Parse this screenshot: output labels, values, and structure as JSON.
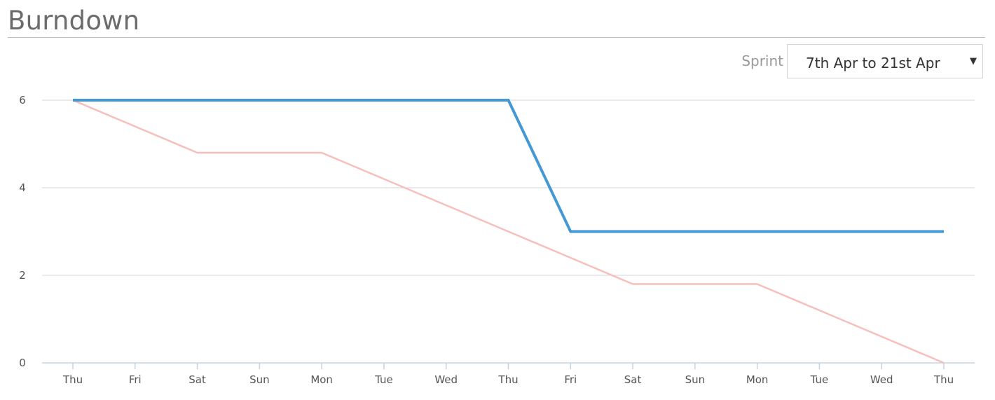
{
  "header": {
    "title": "Burndown"
  },
  "sprint_picker": {
    "label": "Sprint",
    "selected": "7th Apr to 21st Apr",
    "caret_icon": "▼"
  },
  "colors": {
    "actual": "#4499d4",
    "ideal": "#f7bfbc",
    "grid": "#d6d6d6",
    "axis": "#c5d3df"
  },
  "chart_data": {
    "type": "line",
    "x": [
      "Thu",
      "Fri",
      "Sat",
      "Sun",
      "Mon",
      "Tue",
      "Wed",
      "Thu",
      "Fri",
      "Sat",
      "Sun",
      "Mon",
      "Tue",
      "Wed",
      "Thu"
    ],
    "yticks": [
      0,
      2,
      4,
      6
    ],
    "ylim": [
      0,
      6
    ],
    "grid": true,
    "legend": "none",
    "series": [
      {
        "key": "actual",
        "values": [
          6,
          6,
          6,
          6,
          6,
          6,
          6,
          6,
          3,
          3,
          3,
          3,
          3,
          3,
          3
        ]
      },
      {
        "key": "ideal",
        "values": [
          6,
          5.4,
          4.8,
          4.8,
          4.8,
          4.2,
          3.6,
          3.0,
          2.4,
          1.8,
          1.8,
          1.8,
          1.2,
          0.6,
          0
        ]
      }
    ]
  }
}
